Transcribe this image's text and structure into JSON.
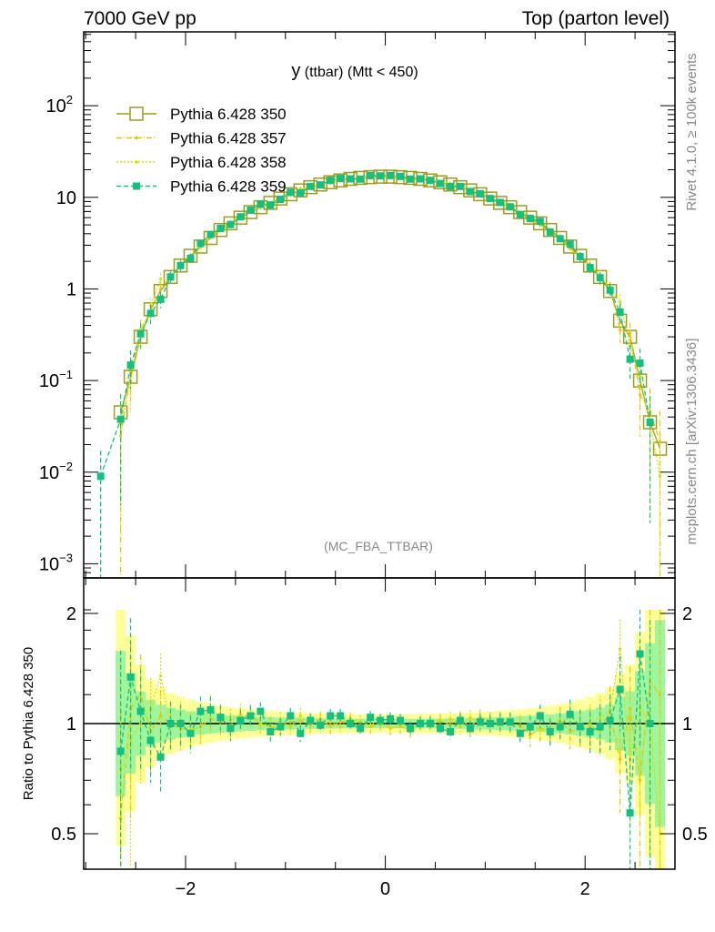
{
  "header": {
    "left": "7000 GeV pp",
    "right": "Top (parton level)"
  },
  "side_labels": {
    "rivet": "Rivet 4.1.0, ≥ 100k events",
    "mcplots": "mcplots.cern.ch [arXiv:1306.3436]"
  },
  "watermark": "(MC_FBA_TTBAR)",
  "chart_data": {
    "type": "line",
    "title": {
      "main": "y",
      "sub": " (ttbar) (Mtt < 450)"
    },
    "xlabel": "",
    "ylabel": "",
    "ratio_ylabel": "Ratio to Pythia 6.428 350",
    "xlim": [
      -3.02,
      2.9
    ],
    "ylim": [
      0.0007,
      640
    ],
    "yscale": "log",
    "ratio_ylim": [
      0.4,
      2.5
    ],
    "x_tick_labels": [
      {
        "v": -2,
        "label": "−2"
      },
      {
        "v": 0,
        "label": "0"
      },
      {
        "v": 2,
        "label": "2"
      }
    ],
    "y_tick_labels": [
      {
        "v": 100,
        "base": "10",
        "exp": "2"
      },
      {
        "v": 10,
        "base": "10",
        "exp": ""
      },
      {
        "v": 1,
        "base": "1",
        "exp": ""
      },
      {
        "v": 0.1,
        "base": "10",
        "exp": "−1"
      },
      {
        "v": 0.01,
        "base": "10",
        "exp": "−2"
      },
      {
        "v": 0.001,
        "base": "10",
        "exp": "−3"
      }
    ],
    "ratio_tick_labels": [
      {
        "v": 2,
        "label": "2"
      },
      {
        "v": 1,
        "label": "1"
      },
      {
        "v": 0.5,
        "label": "0.5"
      }
    ],
    "legend_position": "top-left",
    "x": [
      -2.65,
      -2.55,
      -2.45,
      -2.35,
      -2.25,
      -2.15,
      -2.05,
      -1.95,
      -1.85,
      -1.75,
      -1.65,
      -1.55,
      -1.45,
      -1.35,
      -1.25,
      -1.15,
      -1.05,
      -0.95,
      -0.85,
      -0.75,
      -0.65,
      -0.55,
      -0.45,
      -0.35,
      -0.25,
      -0.15,
      -0.05,
      0.05,
      0.15,
      0.25,
      0.35,
      0.45,
      0.55,
      0.65,
      0.75,
      0.85,
      0.95,
      1.05,
      1.15,
      1.25,
      1.35,
      1.45,
      1.55,
      1.65,
      1.75,
      1.85,
      1.95,
      2.05,
      2.15,
      2.25,
      2.35,
      2.45,
      2.55,
      2.65,
      2.75
    ],
    "series": [
      {
        "name": "Pythia 6.428 350",
        "color": "#9c9c1e",
        "style": "solid",
        "marker": "open-square",
        "reference": true,
        "values": [
          0.045,
          0.11,
          0.3,
          0.6,
          0.95,
          1.35,
          1.8,
          2.3,
          2.9,
          3.6,
          4.4,
          5.2,
          6.0,
          6.9,
          7.8,
          8.7,
          9.7,
          10.8,
          11.9,
          12.9,
          13.8,
          14.6,
          15.3,
          15.9,
          16.3,
          16.6,
          16.8,
          16.8,
          16.6,
          16.3,
          15.9,
          15.3,
          14.6,
          13.8,
          12.9,
          11.9,
          10.8,
          9.7,
          8.7,
          7.8,
          6.9,
          6.0,
          5.2,
          4.4,
          3.6,
          2.9,
          2.3,
          1.8,
          1.35,
          0.95,
          0.45,
          0.3,
          0.1,
          0.035,
          0.018
        ]
      },
      {
        "name": "Pythia 6.428 357",
        "color": "#e8c400",
        "style": "dashdot",
        "marker": "dot",
        "ratio": [
          0.55,
          1.1,
          1.2,
          0.95,
          1.05,
          1.0,
          0.97,
          0.96,
          0.98,
          1.03,
          1.01,
          0.99,
          1.04,
          1.06,
          1.0,
          0.98,
          0.97,
          1.01,
          1.02,
          0.99,
          1.03,
          0.98,
          1.01,
          1.02,
          0.99,
          0.98,
          1.0,
          0.97,
          0.98,
          0.96,
          1.0,
          1.01,
          1.02,
          0.99,
          1.03,
          0.98,
          1.04,
          1.02,
          0.99,
          1.0,
          0.99,
          0.93,
          0.97,
          0.96,
          1.02,
          0.95,
          0.97,
          0.98,
          0.96,
          1.08,
          0.8,
          1.1,
          0.7,
          1.3,
          1.2
        ]
      },
      {
        "name": "Pythia 6.428 358",
        "color": "#d4e000",
        "style": "dotted",
        "marker": "dot",
        "ratio": [
          0.75,
          0.9,
          1.0,
          1.1,
          1.35,
          0.98,
          1.02,
          0.96,
          0.98,
          1.1,
          1.04,
          1.02,
          1.06,
          1.04,
          1.0,
          0.99,
          1.02,
          0.98,
          1.05,
          1.0,
          1.0,
          1.01,
          0.98,
          1.03,
          1.01,
          0.99,
          1.02,
          0.97,
          0.99,
          0.95,
          1.01,
          0.99,
          1.01,
          1.03,
          0.98,
          1.04,
          1.0,
          1.01,
          1.02,
          1.0,
          0.98,
          0.99,
          0.96,
          0.95,
          1.0,
          1.05,
          0.98,
          1.0,
          1.04,
          1.08,
          1.6,
          0.8,
          1.1,
          1.0,
          0.5
        ]
      },
      {
        "name": "Pythia 6.428 359",
        "color": "#14c080",
        "style": "dashed",
        "marker": "filled-square",
        "ratio": [
          0.84,
          1.34,
          1.08,
          0.9,
          0.81,
          1.0,
          1.0,
          0.94,
          1.08,
          1.09,
          1.04,
          0.97,
          1.02,
          1.05,
          1.08,
          0.95,
          0.98,
          1.05,
          0.94,
          1.02,
          0.99,
          1.05,
          1.05,
          1.0,
          0.97,
          1.04,
          1.02,
          1.03,
          1.02,
          0.97,
          1.0,
          1.0,
          0.97,
          0.95,
          1.02,
          0.97,
          1.01,
          1.0,
          1.01,
          1.01,
          0.94,
          0.98,
          1.05,
          0.95,
          0.98,
          1.06,
          0.98,
          0.95,
          0.98,
          1.02,
          1.24,
          0.57,
          1.55,
          1.0,
          null
        ],
        "extra_points": [
          {
            "x": -2.85,
            "y": 0.009
          }
        ]
      }
    ],
    "band_colors": {
      "outer": "#ffff99",
      "inner": "#9ef59e"
    }
  }
}
